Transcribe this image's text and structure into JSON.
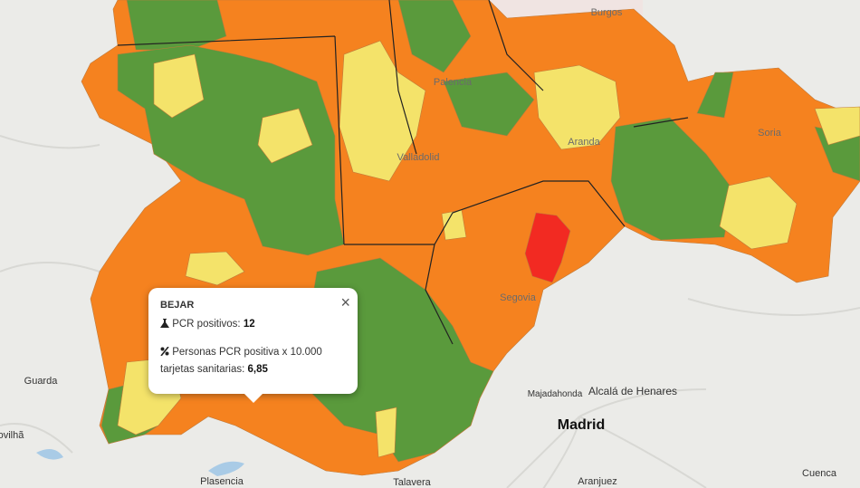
{
  "popup": {
    "title": "BEJAR",
    "close": "×",
    "rows": [
      {
        "label": "PCR positivos:",
        "value": "12"
      },
      {
        "label": "Personas PCR positiva x 10.000 tarjetas sanitarias:",
        "value": "6,85"
      }
    ]
  },
  "map_labels": [
    "Burgos",
    "Palencia",
    "Valladolid",
    "Aranda",
    "Soria",
    "Segovia",
    "Guarda",
    "ovilhã",
    "Majadahonda",
    "Alcalá de Henares",
    "Madrid",
    "Plasencia",
    "Talavera",
    "Aranjuez",
    "Cuenca"
  ]
}
